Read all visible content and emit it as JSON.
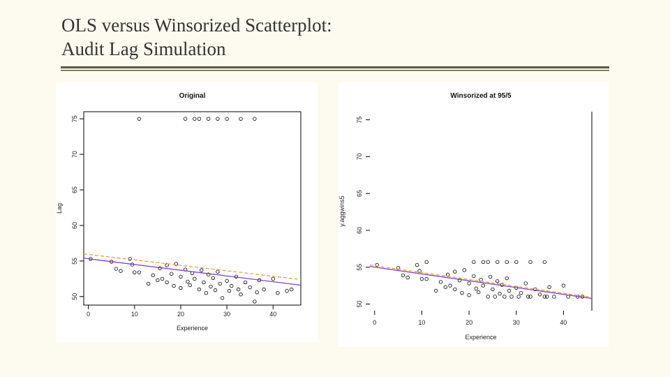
{
  "header": {
    "title_lines": [
      "OLS versus Winsorized Scatterplot:",
      "Audit Lag Simulation"
    ]
  },
  "chart_data": [
    {
      "type": "scatter",
      "title": "Original",
      "x_label": "Experience",
      "y_label": "Lag",
      "xlim": [
        -1,
        46
      ],
      "ylim": [
        48.8,
        76
      ],
      "xticks": [
        0,
        10,
        20,
        30,
        40
      ],
      "yticks": [
        50,
        55,
        60,
        65,
        70,
        75
      ],
      "box": true,
      "color": "#000000",
      "x": [
        0.5,
        5,
        6,
        7,
        9,
        9.5,
        10,
        11,
        11,
        13,
        14,
        15,
        15.5,
        16,
        17,
        17,
        18,
        18.5,
        19,
        20,
        20,
        21,
        21,
        21.5,
        22,
        22.5,
        23,
        23,
        24,
        24,
        24.5,
        25,
        25.5,
        26,
        26,
        26.5,
        27,
        27.5,
        28,
        28,
        28.5,
        29,
        30,
        30,
        30.5,
        31,
        32,
        32.5,
        33,
        33,
        34,
        35,
        36,
        36,
        36.5,
        37,
        38,
        40,
        41,
        43,
        44
      ],
      "y": [
        55.3,
        54.9,
        53.9,
        53.6,
        55.3,
        54.5,
        53.4,
        75,
        53.4,
        51.8,
        53.0,
        52.3,
        54.0,
        52.5,
        54.4,
        52.0,
        53.2,
        51.5,
        54.6,
        52.8,
        51.2,
        75,
        53.8,
        52.1,
        51.6,
        53.3,
        75,
        52.5,
        75,
        51.0,
        53.7,
        52.0,
        50.5,
        75,
        53.1,
        51.4,
        52.6,
        50.9,
        75,
        53.5,
        51.8,
        49.8,
        75,
        52.2,
        50.8,
        51.5,
        52.8,
        51.0,
        75,
        50.3,
        52.0,
        51.3,
        75,
        49.3,
        50.6,
        52.3,
        51.0,
        52.5,
        50.5,
        50.8,
        51.0
      ],
      "fit_lines": [
        {
          "color": "#e8a040",
          "dashed": true,
          "x": [
            -1,
            46
          ],
          "y": [
            56.0,
            52.4
          ]
        },
        {
          "color": "#8040c0",
          "dashed": false,
          "x": [
            -1,
            46
          ],
          "y": [
            55.4,
            51.6
          ]
        }
      ]
    },
    {
      "type": "scatter",
      "title": "Winsorized at 95/5",
      "x_label": "Experience",
      "y_label": "y.aggwins5",
      "xlim": [
        -1,
        46
      ],
      "ylim": [
        49.1,
        76.1
      ],
      "xticks": [
        0,
        10,
        20,
        30,
        40
      ],
      "yticks": [
        50,
        55,
        60,
        65,
        70,
        75
      ],
      "box": false,
      "color": "#000000",
      "x": [
        0.5,
        5,
        6,
        7,
        9,
        9.5,
        10,
        11,
        11,
        13,
        14,
        15,
        15.5,
        16,
        17,
        17,
        18,
        18.5,
        19,
        20,
        20,
        21,
        21,
        21.5,
        22,
        22.5,
        23,
        23,
        24,
        24,
        24.5,
        25,
        25.5,
        26,
        26,
        26.5,
        27,
        27.5,
        28,
        28,
        28.5,
        29,
        30,
        30,
        30.5,
        31,
        32,
        32.5,
        33,
        33,
        34,
        35,
        36,
        36,
        36.5,
        37,
        38,
        40,
        41,
        43,
        44
      ],
      "y": [
        55.3,
        54.9,
        53.9,
        53.6,
        55.3,
        54.5,
        53.4,
        55.7,
        53.4,
        51.8,
        53.0,
        52.3,
        54.0,
        52.5,
        54.4,
        52.0,
        53.2,
        51.5,
        54.6,
        52.8,
        51.2,
        55.7,
        53.8,
        52.1,
        51.6,
        53.3,
        55.7,
        52.5,
        55.7,
        51.0,
        53.7,
        52.0,
        51.0,
        55.7,
        53.1,
        51.4,
        52.6,
        51.0,
        55.7,
        53.5,
        51.8,
        51.0,
        55.7,
        52.2,
        51.0,
        51.5,
        52.8,
        51.0,
        55.7,
        51.0,
        52.0,
        51.3,
        55.7,
        51.0,
        51.0,
        52.3,
        51.0,
        52.5,
        51.0,
        51.0,
        51.0
      ],
      "fit_lines": [
        {
          "color": "#e8a040",
          "dashed": true,
          "x": [
            -1,
            46
          ],
          "y": [
            55.3,
            50.9
          ]
        },
        {
          "color": "#8040c0",
          "dashed": false,
          "x": [
            -1,
            46
          ],
          "y": [
            55.1,
            50.76
          ]
        }
      ]
    }
  ]
}
